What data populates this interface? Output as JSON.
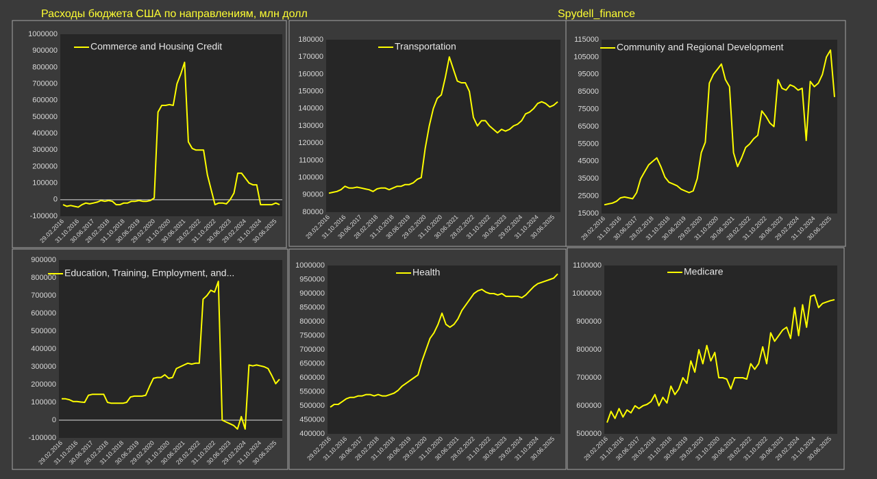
{
  "header": {
    "title": "Расходы бюджета США по направлениям, млн долл",
    "source": "Spydell_finance"
  },
  "chart_data": [
    {
      "type": "line",
      "categories": [
        "29.02.2016",
        null,
        null,
        null,
        "31.10.2016",
        null,
        null,
        null,
        "30.06.2017",
        null,
        null,
        null,
        "28.02.2018",
        null,
        null,
        null,
        "31.10.2018",
        null,
        null,
        null,
        "30.06.2019",
        null,
        null,
        null,
        "29.02.2020",
        null,
        null,
        null,
        "31.10.2020",
        null,
        null,
        null,
        "30.06.2021",
        null,
        null,
        null,
        "28.02.2022",
        null,
        null,
        null,
        "31.10.2022",
        null,
        null,
        null,
        "30.06.2023",
        null,
        null,
        null,
        "29.02.2024",
        null,
        null,
        null,
        "31.10.2024",
        null,
        null,
        null,
        "30.06.2025",
        null
      ],
      "series": [
        {
          "name": "Commerce and Housing Credit",
          "color": "#ffff00",
          "values": [
            -30000,
            -40000,
            -35000,
            -40000,
            -45000,
            -30000,
            -20000,
            -25000,
            -20000,
            -15000,
            -5000,
            -10000,
            -5000,
            -10000,
            -30000,
            -30000,
            -20000,
            -20000,
            -10000,
            -10000,
            -5000,
            -10000,
            -10000,
            -5000,
            10000,
            530000,
            570000,
            570000,
            575000,
            570000,
            700000,
            760000,
            830000,
            350000,
            310000,
            300000,
            300000,
            300000,
            150000,
            60000,
            -30000,
            -20000,
            -20000,
            -25000,
            0,
            40000,
            160000,
            160000,
            130000,
            100000,
            90000,
            90000,
            -30000,
            -30000,
            -30000,
            -30000,
            -20000,
            -30000
          ]
        }
      ],
      "ylim": [
        -100000,
        1000000
      ],
      "yticks": [
        -100000,
        0,
        100000,
        200000,
        300000,
        400000,
        500000,
        600000,
        700000,
        800000,
        900000,
        1000000
      ]
    },
    {
      "type": "line",
      "categories": [
        "29.02.2016",
        null,
        null,
        null,
        "31.10.2016",
        null,
        null,
        null,
        "30.06.2017",
        null,
        null,
        null,
        "28.02.2018",
        null,
        null,
        null,
        "31.10.2018",
        null,
        null,
        null,
        "30.06.2019",
        null,
        null,
        null,
        "29.02.2020",
        null,
        null,
        null,
        "31.10.2020",
        null,
        null,
        null,
        "30.06.2021",
        null,
        null,
        null,
        "28.02.2022",
        null,
        null,
        null,
        "31.10.2022",
        null,
        null,
        null,
        "30.06.2023",
        null,
        null,
        null,
        "29.02.2024",
        null,
        null,
        null,
        "31.10.2024",
        null,
        null,
        null,
        "30.06.2025",
        null
      ],
      "series": [
        {
          "name": "Transportation",
          "color": "#ffff00",
          "values": [
            91000,
            91500,
            92000,
            93000,
            95000,
            94000,
            94000,
            94500,
            94000,
            93500,
            93000,
            92000,
            93500,
            94000,
            94000,
            93000,
            94000,
            95000,
            95000,
            96000,
            96000,
            97000,
            99000,
            100000,
            117000,
            130000,
            140000,
            146000,
            148000,
            158000,
            170000,
            163000,
            156000,
            155000,
            155000,
            150000,
            135000,
            130000,
            133000,
            133000,
            130000,
            128000,
            126000,
            128000,
            127000,
            128000,
            130000,
            131000,
            133000,
            137000,
            138000,
            140000,
            143000,
            144000,
            143000,
            141000,
            142000,
            144000
          ]
        }
      ],
      "ylim": [
        80000,
        180000
      ],
      "yticks": [
        80000,
        90000,
        100000,
        110000,
        120000,
        130000,
        140000,
        150000,
        160000,
        170000,
        180000
      ]
    },
    {
      "type": "line",
      "categories": [
        "29.02.2016",
        null,
        null,
        null,
        "31.10.2016",
        null,
        null,
        null,
        "30.06.2017",
        null,
        null,
        null,
        "28.02.2018",
        null,
        null,
        null,
        "31.10.2018",
        null,
        null,
        null,
        "30.06.2019",
        null,
        null,
        null,
        "29.02.2020",
        null,
        null,
        null,
        "31.10.2020",
        null,
        null,
        null,
        "30.06.2021",
        null,
        null,
        null,
        "28.02.2022",
        null,
        null,
        null,
        "31.10.2022",
        null,
        null,
        null,
        "30.06.2023",
        null,
        null,
        null,
        "29.02.2024",
        null,
        null,
        null,
        "31.10.2024",
        null,
        null,
        null,
        "30.06.2025",
        null
      ],
      "series": [
        {
          "name": "Community and Regional Development",
          "color": "#ffff00",
          "values": [
            20000,
            20500,
            21000,
            22000,
            24000,
            24500,
            24000,
            23500,
            27000,
            35000,
            39000,
            43000,
            45000,
            47000,
            42000,
            36000,
            33000,
            32000,
            31000,
            29000,
            28000,
            27000,
            28000,
            35000,
            50000,
            56000,
            90000,
            95000,
            98000,
            101000,
            92000,
            88000,
            50000,
            42000,
            47000,
            53000,
            55000,
            58000,
            60000,
            74000,
            71000,
            67000,
            65000,
            92000,
            87000,
            86000,
            89000,
            88000,
            86000,
            87000,
            57000,
            91000,
            88000,
            90000,
            95000,
            105000,
            109000,
            82000
          ]
        }
      ],
      "ylim": [
        15000,
        115000
      ],
      "yticks": [
        15000,
        25000,
        35000,
        45000,
        55000,
        65000,
        75000,
        85000,
        95000,
        105000,
        115000
      ]
    },
    {
      "type": "line",
      "categories": [
        "29.02.2016",
        null,
        null,
        null,
        "31.10.2016",
        null,
        null,
        null,
        "30.06.2017",
        null,
        null,
        null,
        "28.02.2018",
        null,
        null,
        null,
        "31.10.2018",
        null,
        null,
        null,
        "30.06.2019",
        null,
        null,
        null,
        "29.02.2020",
        null,
        null,
        null,
        "31.10.2020",
        null,
        null,
        null,
        "30.06.2021",
        null,
        null,
        null,
        "28.02.2022",
        null,
        null,
        null,
        "31.10.2022",
        null,
        null,
        null,
        "30.06.2023",
        null,
        null,
        null,
        "29.02.2024",
        null,
        null,
        null,
        "31.10.2024",
        null,
        null,
        null,
        "30.06.2025",
        null
      ],
      "series": [
        {
          "name": "Education, Training, Employment, and...",
          "color": "#ffff00",
          "values": [
            120000,
            120000,
            115000,
            105000,
            105000,
            102000,
            100000,
            140000,
            145000,
            145000,
            145000,
            145000,
            100000,
            95000,
            95000,
            95000,
            95000,
            100000,
            130000,
            135000,
            135000,
            135000,
            140000,
            190000,
            235000,
            240000,
            240000,
            255000,
            235000,
            240000,
            290000,
            300000,
            310000,
            320000,
            315000,
            320000,
            320000,
            680000,
            700000,
            730000,
            720000,
            780000,
            0,
            -10000,
            -20000,
            -30000,
            -50000,
            20000,
            -50000,
            310000,
            305000,
            310000,
            305000,
            300000,
            290000,
            250000,
            205000,
            230000
          ]
        }
      ],
      "ylim": [
        -100000,
        900000
      ],
      "yticks": [
        -100000,
        0,
        100000,
        200000,
        300000,
        400000,
        500000,
        600000,
        700000,
        800000,
        900000
      ]
    },
    {
      "type": "line",
      "categories": [
        "29.02.2016",
        null,
        null,
        null,
        "31.10.2016",
        null,
        null,
        null,
        "30.06.2017",
        null,
        null,
        null,
        "28.02.2018",
        null,
        null,
        null,
        "31.10.2018",
        null,
        null,
        null,
        "30.06.2019",
        null,
        null,
        null,
        "29.02.2020",
        null,
        null,
        null,
        "31.10.2020",
        null,
        null,
        null,
        "30.06.2021",
        null,
        null,
        null,
        "28.02.2022",
        null,
        null,
        null,
        "31.10.2022",
        null,
        null,
        null,
        "30.06.2023",
        null,
        null,
        null,
        "29.02.2024",
        null,
        null,
        null,
        "31.10.2024",
        null,
        null,
        null,
        "30.06.2025",
        null
      ],
      "series": [
        {
          "name": "Health",
          "color": "#ffff00",
          "values": [
            495000,
            505000,
            505000,
            515000,
            525000,
            530000,
            530000,
            535000,
            535000,
            540000,
            540000,
            535000,
            540000,
            535000,
            535000,
            540000,
            545000,
            555000,
            570000,
            580000,
            590000,
            600000,
            610000,
            660000,
            700000,
            740000,
            760000,
            790000,
            830000,
            790000,
            780000,
            790000,
            810000,
            840000,
            860000,
            880000,
            900000,
            910000,
            915000,
            905000,
            900000,
            900000,
            895000,
            900000,
            890000,
            890000,
            890000,
            890000,
            885000,
            895000,
            910000,
            925000,
            935000,
            940000,
            945000,
            950000,
            955000,
            970000
          ]
        }
      ],
      "ylim": [
        400000,
        1000000
      ],
      "yticks": [
        400000,
        450000,
        500000,
        550000,
        600000,
        650000,
        700000,
        750000,
        800000,
        850000,
        900000,
        950000,
        1000000
      ]
    },
    {
      "type": "line",
      "categories": [
        "29.02.2016",
        null,
        null,
        null,
        "31.10.2016",
        null,
        null,
        null,
        "30.06.2017",
        null,
        null,
        null,
        "28.02.2018",
        null,
        null,
        null,
        "31.10.2018",
        null,
        null,
        null,
        "30.06.2019",
        null,
        null,
        null,
        "29.02.2020",
        null,
        null,
        null,
        "31.10.2020",
        null,
        null,
        null,
        "30.06.2021",
        null,
        null,
        null,
        "28.02.2022",
        null,
        null,
        null,
        "31.10.2022",
        null,
        null,
        null,
        "30.06.2023",
        null,
        null,
        null,
        "29.02.2024",
        null,
        null,
        null,
        "31.10.2024",
        null,
        null,
        null,
        "30.06.2025",
        null
      ],
      "series": [
        {
          "name": "Medicare",
          "color": "#ffff00",
          "values": [
            540000,
            580000,
            555000,
            590000,
            560000,
            585000,
            575000,
            600000,
            590000,
            600000,
            605000,
            615000,
            640000,
            600000,
            630000,
            610000,
            670000,
            640000,
            660000,
            700000,
            680000,
            760000,
            720000,
            800000,
            750000,
            815000,
            760000,
            790000,
            700000,
            700000,
            695000,
            660000,
            700000,
            700000,
            700000,
            695000,
            750000,
            730000,
            750000,
            810000,
            750000,
            860000,
            830000,
            850000,
            870000,
            880000,
            840000,
            950000,
            850000,
            960000,
            880000,
            990000,
            995000,
            950000,
            965000,
            970000,
            975000,
            978000
          ]
        }
      ],
      "ylim": [
        500000,
        1100000
      ],
      "yticks": [
        500000,
        600000,
        700000,
        800000,
        900000,
        1000000,
        1100000
      ]
    }
  ]
}
